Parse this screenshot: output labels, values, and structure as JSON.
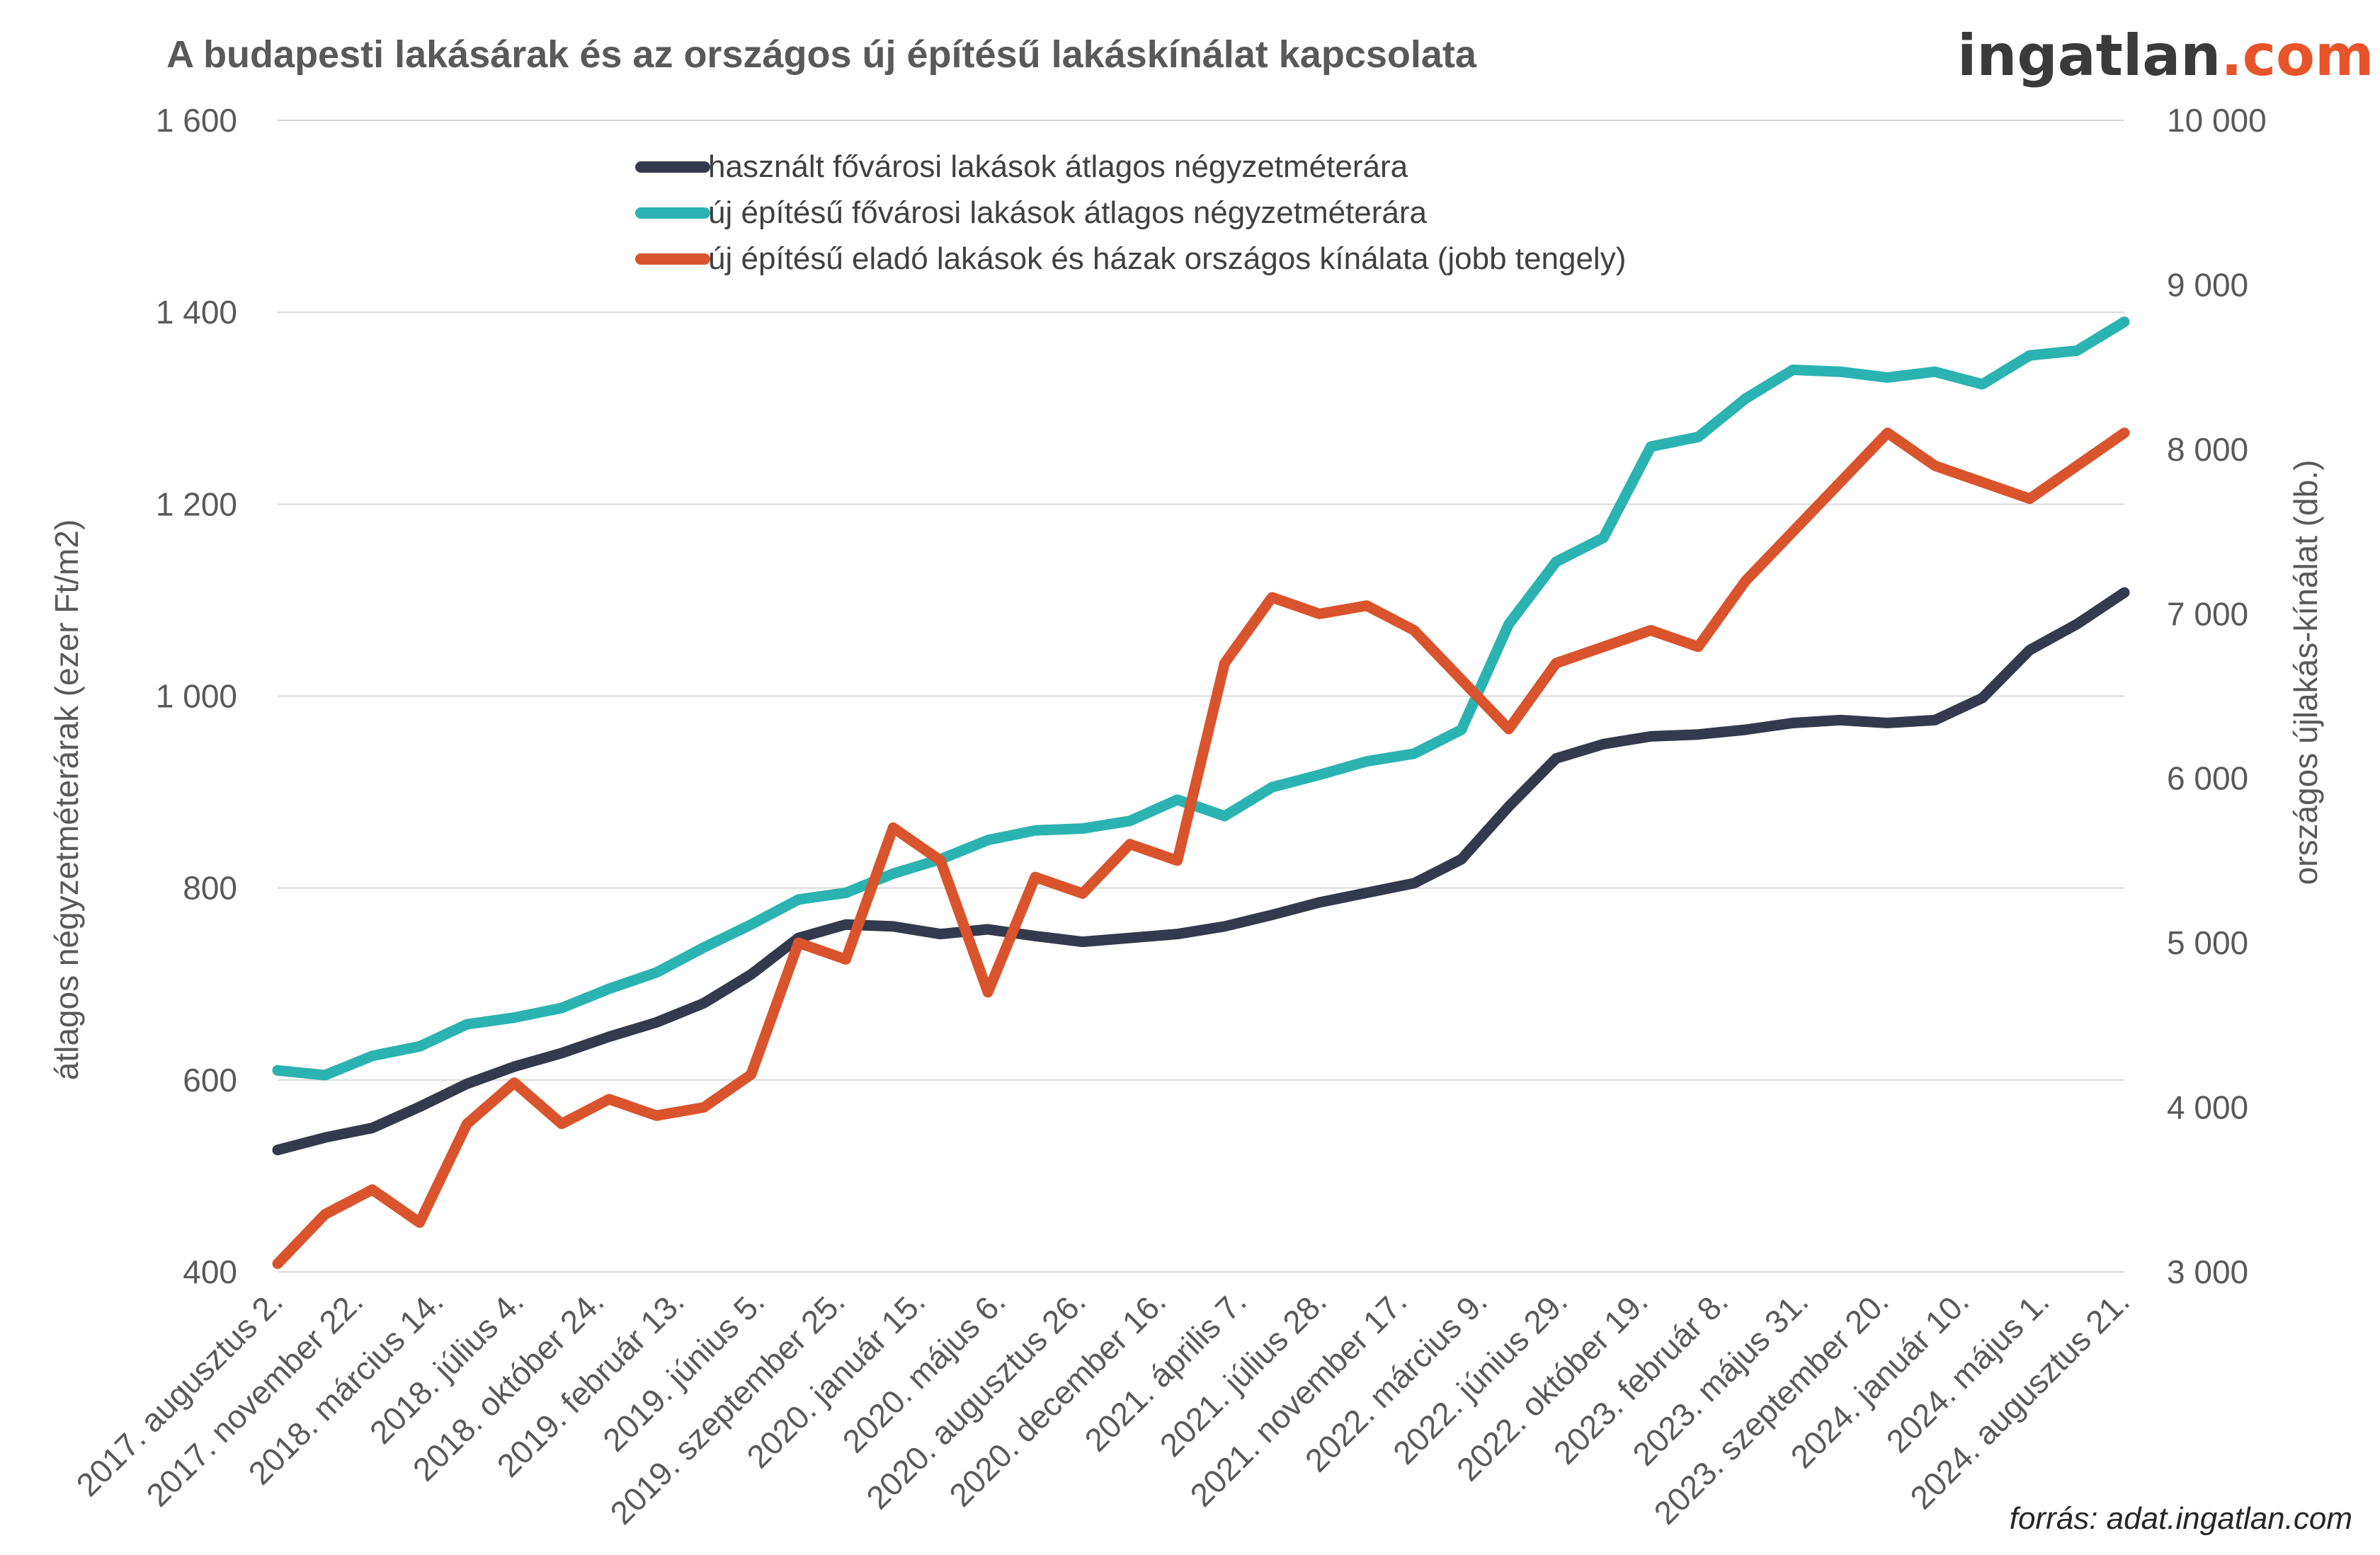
{
  "brand": {
    "logo_main": "ingatlan",
    "logo_suffix": ".com",
    "main_color": "#3a3a3a",
    "accent_color": "#e8542a"
  },
  "source_note": "forrás: adat.ingatlan.com",
  "chart_data": {
    "type": "line",
    "title": "A budapesti lakásárak és az országos új építésű lakáskínálat kapcsolata",
    "ylabel": "átlagos négyzetméterárak (ezer Ft/m2)",
    "y2label": "országos újlakás-kínálat (db.)",
    "ylim": [
      400,
      1600
    ],
    "y2lim": [
      3000,
      10000
    ],
    "yticks": [
      400,
      600,
      800,
      1000,
      1200,
      1400,
      1600
    ],
    "yticks_labels": [
      "400",
      "600",
      "800",
      "1 000",
      "1 200",
      "1 400",
      "1 600"
    ],
    "y2ticks": [
      3000,
      4000,
      5000,
      6000,
      7000,
      8000,
      9000,
      10000
    ],
    "y2ticks_labels": [
      "3 000",
      "4 000",
      "5 000",
      "6 000",
      "7 000",
      "8 000",
      "9 000",
      "10 000"
    ],
    "x_tick_labels": [
      "2017. augusztus 2.",
      "2017. november 22.",
      "2018. március 14.",
      "2018. július 4.",
      "2018. október 24.",
      "2019. február 13.",
      "2019. június 5.",
      "2019. szeptember 25.",
      "2020. január 15.",
      "2020. május 6.",
      "2020. augusztus 26.",
      "2020. december 16.",
      "2021. április 7.",
      "2021. július 28.",
      "2021. november 17.",
      "2022. március 9.",
      "2022. június 29.",
      "2022. október 19.",
      "2023. február 8.",
      "2023. május 31.",
      "2023. szeptember 20.",
      "2024. január 10.",
      "2024. május 1.",
      "2024. augusztus 21."
    ],
    "grid": true,
    "legend_position": "top-center",
    "series": [
      {
        "name": "használt fővárosi lakások átlagos négyzetméterára",
        "axis": "left",
        "color": "#333a4d",
        "values": [
          527,
          540,
          550,
          572,
          596,
          614,
          628,
          645,
          660,
          680,
          710,
          748,
          762,
          760,
          752,
          757,
          750,
          744,
          748,
          752,
          760,
          772,
          785,
          795,
          805,
          830,
          885,
          935,
          950,
          958,
          960,
          965,
          972,
          975,
          972,
          975,
          998,
          1048,
          1075,
          1108
        ]
      },
      {
        "name": "új építésű fővárosi lakások átlagos négyzetméterára",
        "axis": "left",
        "color": "#2bb3b1",
        "values": [
          610,
          605,
          625,
          635,
          658,
          665,
          675,
          695,
          712,
          738,
          762,
          788,
          795,
          815,
          830,
          850,
          860,
          862,
          870,
          892,
          875,
          905,
          918,
          932,
          940,
          965,
          1075,
          1140,
          1165,
          1260,
          1270,
          1310,
          1340,
          1338,
          1332,
          1338,
          1325,
          1355,
          1360,
          1390
        ]
      },
      {
        "name": "új építésű eladó lakások és házak országos kínálata (jobb tengely)",
        "axis": "right",
        "color": "#d9542c",
        "values": [
          3050,
          3350,
          3500,
          3300,
          3900,
          4150,
          3900,
          4050,
          3950,
          4000,
          4200,
          5000,
          4900,
          5700,
          5500,
          4700,
          5400,
          5300,
          5600,
          5500,
          6700,
          7100,
          7000,
          7050,
          6900,
          6600,
          6300,
          6700,
          6800,
          6900,
          6800,
          7200,
          7500,
          7800,
          8100,
          7900,
          7800,
          7700,
          7900,
          8100
        ]
      }
    ]
  }
}
